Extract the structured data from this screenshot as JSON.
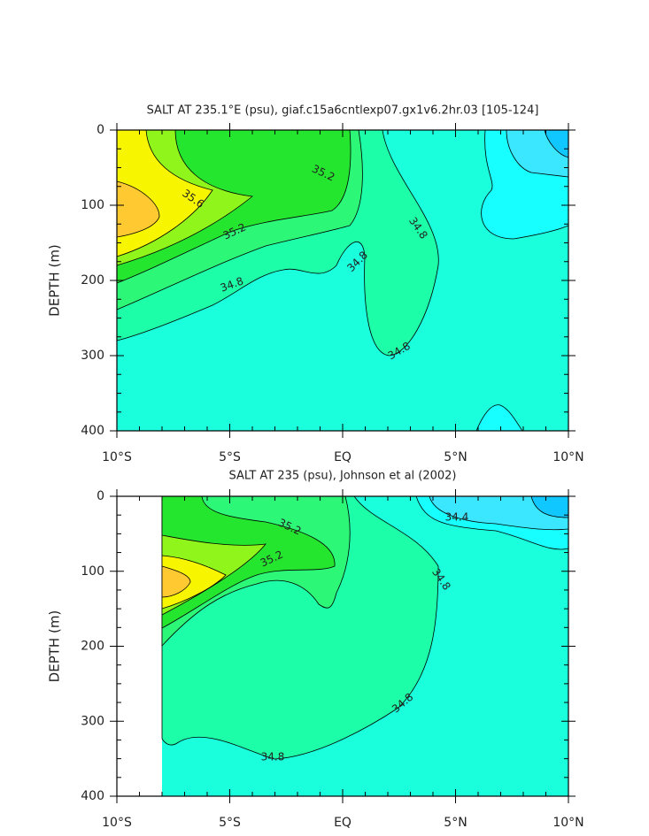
{
  "chart_data": [
    {
      "type": "contour",
      "title": "SALT AT 235.1°E (psu), giaf.c15a6cntlexp07.gx1v6.2hr.03 [105-124]",
      "y_label": "DEPTH (m)",
      "xlim": [
        -10,
        10
      ],
      "xticks": [
        {
          "value": -10,
          "label": "10°S"
        },
        {
          "value": -5,
          "label": "5°S"
        },
        {
          "value": 0,
          "label": "EQ"
        },
        {
          "value": 5,
          "label": "5°N"
        },
        {
          "value": 10,
          "label": "10°N"
        }
      ],
      "minor_xticks": [
        -9,
        -8,
        -7,
        -6,
        -4,
        -3,
        -2,
        -1,
        1,
        2,
        3,
        4,
        6,
        7,
        8,
        9
      ],
      "ylim": [
        0,
        400
      ],
      "invert_y": true,
      "yticks": [
        0,
        100,
        200,
        300,
        400
      ],
      "minor_yticks": [
        25,
        50,
        75,
        125,
        150,
        175,
        225,
        250,
        275,
        325,
        350,
        375
      ],
      "contour_labels": [
        35.6,
        35.2,
        35.2,
        34.8,
        34.8,
        34.8,
        34.8
      ]
    },
    {
      "type": "contour",
      "title": "SALT AT 235 (psu), Johnson et al (2002)",
      "y_label": "DEPTH (m)",
      "xlim": [
        -10,
        10
      ],
      "xticks": [
        {
          "value": -10,
          "label": "10°S"
        },
        {
          "value": -5,
          "label": "5°S"
        },
        {
          "value": 0,
          "label": "EQ"
        },
        {
          "value": 5,
          "label": "5°N"
        },
        {
          "value": 10,
          "label": "10°N"
        }
      ],
      "minor_xticks": [
        -9,
        -8,
        -7,
        -6,
        -4,
        -3,
        -2,
        -1,
        1,
        2,
        3,
        4,
        6,
        7,
        8,
        9
      ],
      "ylim": [
        0,
        400
      ],
      "invert_y": true,
      "yticks": [
        0,
        100,
        200,
        300,
        400
      ],
      "minor_yticks": [
        25,
        50,
        75,
        125,
        150,
        175,
        225,
        250,
        275,
        325,
        350,
        375
      ],
      "contour_labels": [
        35.2,
        35.2,
        34.4,
        34.8,
        34.8,
        34.8
      ]
    }
  ]
}
